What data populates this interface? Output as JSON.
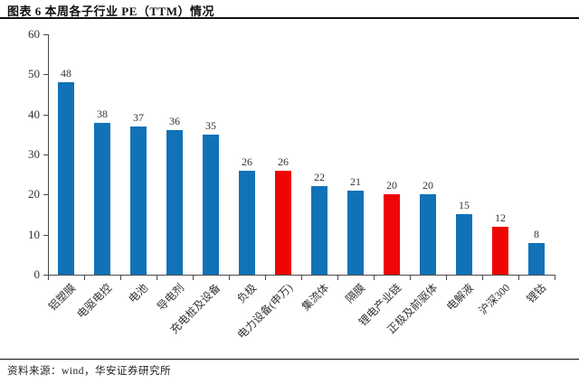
{
  "header": {
    "title": "图表 6 本周各子行业 PE（TTM）情况"
  },
  "footer": {
    "source": "资料来源：wind，华安证券研究所"
  },
  "colors": {
    "bar_blue": "#1172b8",
    "bar_red": "#ee0606",
    "axis": "#4a4a4a",
    "text": "#333333"
  },
  "chart_data": {
    "type": "bar",
    "title": "本周各子行业 PE（TTM）情况",
    "categories": [
      "铝塑膜",
      "电驱电控",
      "电池",
      "导电剂",
      "充电桩及设备",
      "负极",
      "电力设备(申万)",
      "集流体",
      "隔膜",
      "锂电产业链",
      "正极及前驱体",
      "电解液",
      "沪深300",
      "锂钴"
    ],
    "values": [
      48,
      38,
      37,
      36,
      35,
      26,
      26,
      22,
      21,
      20,
      20,
      15,
      12,
      8
    ],
    "bar_colors": [
      "#1172b8",
      "#1172b8",
      "#1172b8",
      "#1172b8",
      "#1172b8",
      "#1172b8",
      "#ee0606",
      "#1172b8",
      "#1172b8",
      "#ee0606",
      "#1172b8",
      "#1172b8",
      "#ee0606",
      "#1172b8"
    ],
    "xlabel": "",
    "ylabel": "",
    "ylim": [
      0,
      60
    ],
    "yticks": [
      0,
      10,
      20,
      30,
      40,
      50,
      60
    ],
    "grid": false,
    "legend": false,
    "value_labels": true
  }
}
